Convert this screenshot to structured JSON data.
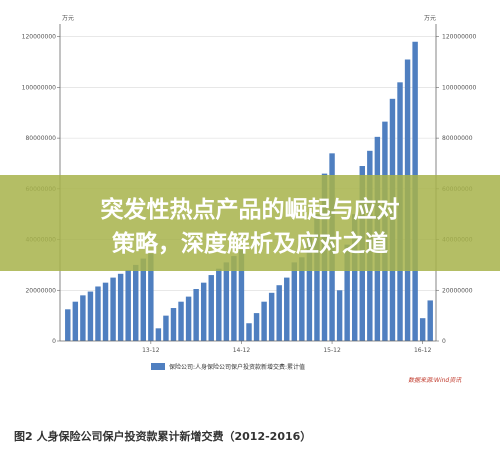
{
  "chart_data": {
    "type": "bar",
    "unit_left": "万元",
    "unit_right": "万元",
    "y_ticks": [
      "0",
      "20000000",
      "40000000",
      "60000000",
      "80000000",
      "100000000",
      "120000000"
    ],
    "ylim": [
      0,
      125000000
    ],
    "x_tick_labels": [
      "13-12",
      "14-12",
      "15-12",
      "16-12"
    ],
    "x_tick_indices": [
      11,
      23,
      35,
      47
    ],
    "legend": [
      "保险公司:人身保险公司保户投资款新增交费:累计值"
    ],
    "series": [
      {
        "color": "#4f7fc0",
        "values": [
          12500000,
          15500000,
          18000000,
          19500000,
          21500000,
          23000000,
          25000000,
          26500000,
          28000000,
          30000000,
          32500000,
          34500000,
          5000000,
          10000000,
          13000000,
          15500000,
          17500000,
          20500000,
          23000000,
          26000000,
          28500000,
          31000000,
          33500000,
          36000000,
          7000000,
          11000000,
          15500000,
          19000000,
          22000000,
          25000000,
          31000000,
          33000000,
          41000000,
          50000000,
          66000000,
          74000000,
          20000000,
          38000000,
          50000000,
          69000000,
          75000000,
          80500000,
          86500000,
          95500000,
          102000000,
          111000000,
          118000000,
          9000000,
          16000000
        ]
      }
    ]
  },
  "banner": {
    "line1": "突发性热点产品的崛起与应对",
    "line2": "策略，深度解析及应对之道"
  },
  "source_note": "数据来源:Wind资讯",
  "caption": "图2 人身保险公司保户投资款累计新增交费（2012-2016）",
  "colors": {
    "bar": "#4f7fc0",
    "banner": "#a7b34a",
    "axis": "#666666"
  }
}
